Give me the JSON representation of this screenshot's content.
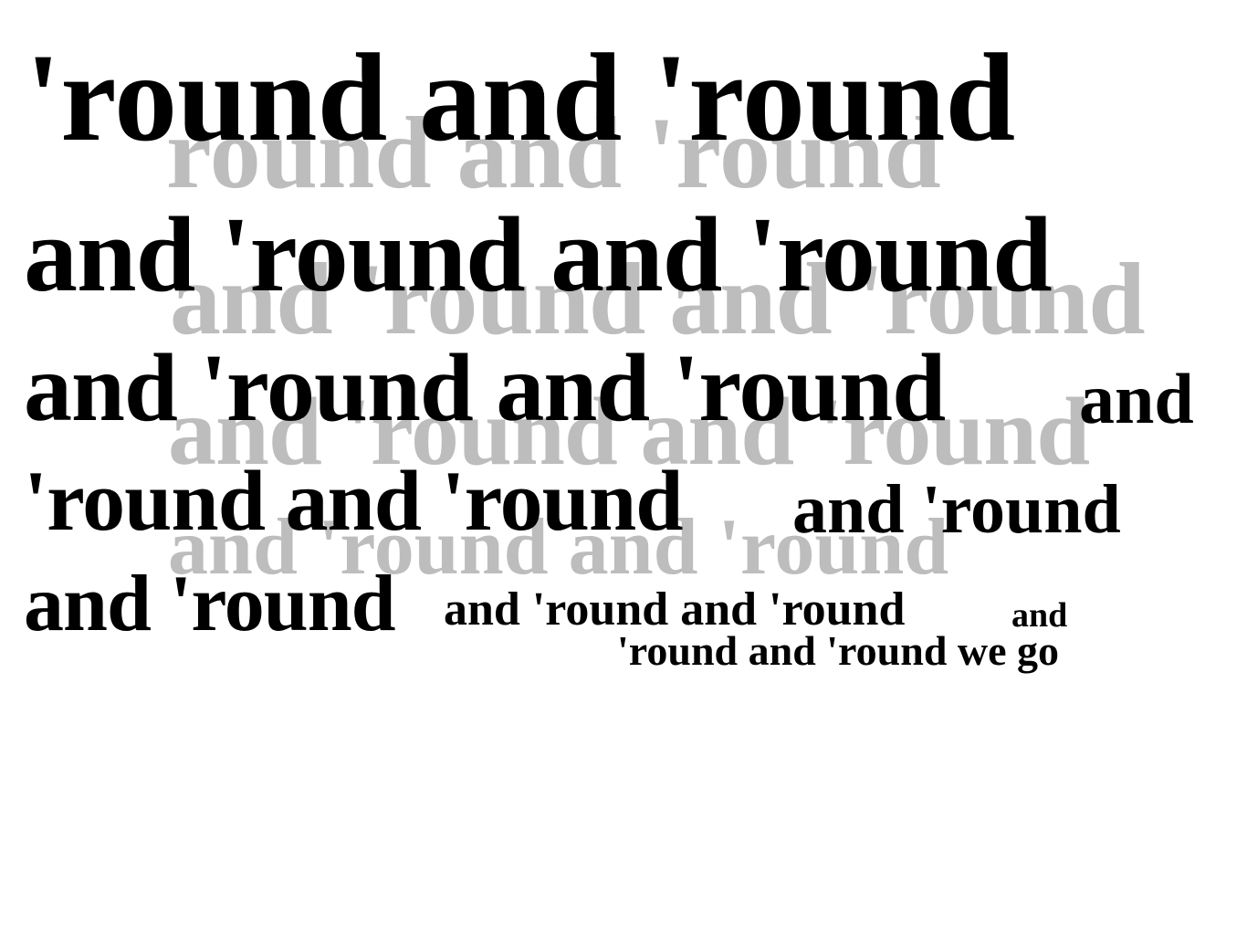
{
  "ghost_lines": [
    "round and 'round",
    "and 'round and 'round",
    "and 'round and 'round",
    "and 'round and 'round"
  ],
  "lines": [
    "'round and 'round",
    "and 'round and 'round",
    "and 'round and 'round",
    "and",
    "'round and 'round",
    "and 'round",
    "and 'round",
    "and 'round and 'round",
    "and",
    "'round and 'round we go"
  ],
  "colors": {
    "text": "#000000",
    "ghost_text": "#bdbdbd",
    "background": "#ffffff"
  }
}
